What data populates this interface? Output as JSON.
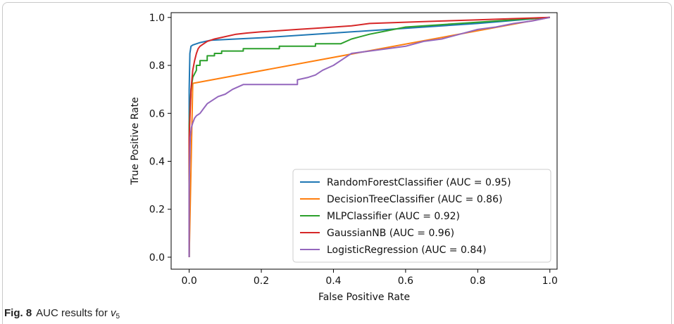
{
  "caption": {
    "fig_label": "Fig. 8",
    "text": "AUC results for",
    "variable": "v",
    "subscript": "5"
  },
  "chart_data": {
    "type": "line",
    "xlabel": "False Positive Rate",
    "ylabel": "True Positive Rate",
    "xlim": [
      -0.05,
      1.02
    ],
    "ylim": [
      -0.05,
      1.02
    ],
    "xticks": [
      "0.0",
      "0.2",
      "0.4",
      "0.6",
      "0.8",
      "1.0"
    ],
    "yticks": [
      "0.0",
      "0.2",
      "0.4",
      "0.6",
      "0.8",
      "1.0"
    ],
    "grid": false,
    "legend_position": "lower-right",
    "series": [
      {
        "name": "RandomForestClassifier (AUC = 0.95)",
        "color": "#1f77b4",
        "x": [
          0,
          0,
          0.002,
          0.005,
          0.01,
          0.03,
          0.06,
          0.2,
          0.4,
          0.6,
          0.8,
          1.0
        ],
        "y": [
          0,
          0.7,
          0.85,
          0.88,
          0.885,
          0.895,
          0.905,
          0.915,
          0.935,
          0.955,
          0.975,
          1.0
        ]
      },
      {
        "name": "DecisionTreeClassifier (AUC = 0.86)",
        "color": "#ff7f0e",
        "x": [
          0,
          0.01,
          1.0
        ],
        "y": [
          0,
          0.725,
          1.0
        ]
      },
      {
        "name": "MLPClassifier (AUC = 0.92)",
        "color": "#2ca02c",
        "x": [
          0,
          0,
          0.005,
          0.01,
          0.02,
          0.02,
          0.03,
          0.03,
          0.05,
          0.05,
          0.07,
          0.07,
          0.09,
          0.09,
          0.15,
          0.15,
          0.25,
          0.25,
          0.35,
          0.35,
          0.42,
          0.45,
          0.5,
          0.55,
          0.6,
          0.7,
          0.8,
          1.0
        ],
        "y": [
          0,
          0.55,
          0.7,
          0.75,
          0.78,
          0.8,
          0.8,
          0.82,
          0.82,
          0.84,
          0.84,
          0.85,
          0.85,
          0.86,
          0.86,
          0.87,
          0.87,
          0.88,
          0.88,
          0.89,
          0.89,
          0.91,
          0.93,
          0.945,
          0.96,
          0.97,
          0.98,
          1.0
        ]
      },
      {
        "name": "GaussianNB (AUC = 0.96)",
        "color": "#d62728",
        "x": [
          0,
          0,
          0.005,
          0.01,
          0.015,
          0.02,
          0.025,
          0.03,
          0.04,
          0.05,
          0.07,
          0.1,
          0.13,
          0.16,
          0.2,
          0.25,
          0.3,
          0.35,
          0.45,
          0.5,
          0.6,
          0.7,
          0.8,
          0.9,
          1.0
        ],
        "y": [
          0,
          0.5,
          0.7,
          0.78,
          0.82,
          0.85,
          0.87,
          0.88,
          0.89,
          0.9,
          0.91,
          0.92,
          0.93,
          0.935,
          0.94,
          0.945,
          0.95,
          0.955,
          0.965,
          0.975,
          0.98,
          0.985,
          0.99,
          0.995,
          1.0
        ]
      },
      {
        "name": "LogisticRegression (AUC = 0.84)",
        "color": "#9467bd",
        "x": [
          0,
          0,
          0.003,
          0.006,
          0.01,
          0.015,
          0.02,
          0.03,
          0.04,
          0.05,
          0.06,
          0.08,
          0.1,
          0.12,
          0.15,
          0.2,
          0.25,
          0.3,
          0.3,
          0.33,
          0.35,
          0.37,
          0.4,
          0.43,
          0.45,
          0.5,
          0.55,
          0.6,
          0.65,
          0.7,
          0.75,
          0.8,
          0.85,
          0.9,
          0.95,
          1.0
        ],
        "y": [
          0,
          0.3,
          0.5,
          0.54,
          0.56,
          0.58,
          0.59,
          0.6,
          0.62,
          0.64,
          0.65,
          0.67,
          0.68,
          0.7,
          0.72,
          0.72,
          0.72,
          0.72,
          0.74,
          0.75,
          0.76,
          0.78,
          0.8,
          0.83,
          0.85,
          0.86,
          0.87,
          0.88,
          0.9,
          0.91,
          0.93,
          0.95,
          0.96,
          0.975,
          0.985,
          1.0
        ]
      }
    ]
  }
}
